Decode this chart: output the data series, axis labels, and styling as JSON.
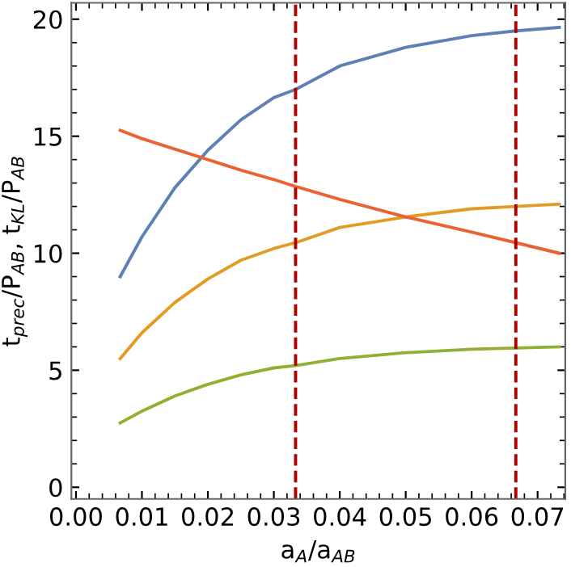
{
  "chart_data": {
    "type": "line",
    "xlabel": "a$_{A}$/a$_{AB}$",
    "ylabel": "t$_{prec}$/P$_{AB}$, t$_{KL}$/P$_{AB}$",
    "x": [
      0.0067,
      0.01,
      0.015,
      0.02,
      0.025,
      0.03,
      0.0333,
      0.04,
      0.05,
      0.06,
      0.0667,
      0.0733
    ],
    "series": [
      {
        "color": "#5e81b5",
        "values": [
          9.0,
          10.7,
          12.8,
          14.4,
          15.7,
          16.65,
          17.0,
          18.0,
          18.8,
          19.3,
          19.5,
          19.65
        ]
      },
      {
        "color": "#e19c24",
        "values": [
          5.5,
          6.6,
          7.9,
          8.9,
          9.7,
          10.2,
          10.45,
          11.1,
          11.55,
          11.9,
          12.0,
          12.1
        ]
      },
      {
        "color": "#8fb032",
        "values": [
          2.75,
          3.25,
          3.9,
          4.4,
          4.8,
          5.1,
          5.2,
          5.5,
          5.75,
          5.9,
          5.95,
          6.0
        ]
      },
      {
        "color": "#eb6235",
        "values": [
          15.25,
          14.9,
          14.45,
          14.0,
          13.55,
          13.15,
          12.85,
          12.3,
          11.55,
          10.9,
          10.45,
          10.0
        ]
      }
    ],
    "ref_lines": [
      {
        "axis": "x",
        "value": 0.0333,
        "color": "#b00000",
        "line_style": "dashed"
      },
      {
        "axis": "x",
        "value": 0.0667,
        "color": "#b00000",
        "line_style": "dashed"
      }
    ],
    "xlim": [
      -0.0007,
      0.0742
    ],
    "ylim": [
      -0.5,
      20.7
    ],
    "xticks": [
      {
        "value": 0,
        "label": "0.00"
      },
      0.01,
      0.02,
      0.03,
      0.04,
      0.05,
      0.06,
      0.07
    ],
    "yticks": [
      0,
      5,
      10,
      15,
      20
    ],
    "grid": false,
    "legend": false,
    "marker": "none",
    "line_style": "solid"
  }
}
